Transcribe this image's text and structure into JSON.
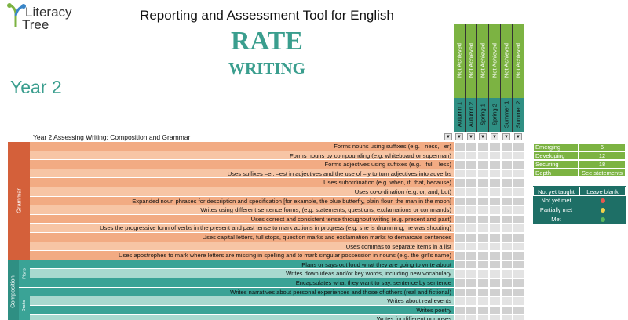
{
  "logo": {
    "line1": "Literacy",
    "line2": "Tree"
  },
  "header": {
    "title": "Reporting and Assessment Tool for English",
    "rate": "RATE",
    "subtitle": "WRITING",
    "year": "Year 2"
  },
  "table": {
    "heading": "Year 2 Assessing Writing: Composition and Grammar",
    "columns": [
      {
        "status": "Not Achieved",
        "period": "Autumn 1"
      },
      {
        "status": "Not Achieved",
        "period": "Autumn 2"
      },
      {
        "status": "Not Achieved",
        "period": "Spring 1"
      },
      {
        "status": "Not Achieved",
        "period": "Spring 2"
      },
      {
        "status": "Not Achieved",
        "period": "Summer 1"
      },
      {
        "status": "Not Achieved",
        "period": "Summer 2"
      }
    ],
    "sections": [
      {
        "name": "Grammar",
        "groups": [
          {
            "rows": [
              "Forms nouns using suffixes (e.g. –ness, –er)",
              "Forms nouns by compounding (e.g. whiteboard or superman)",
              "Forms adjectives using suffixes (e.g. –ful, –less)",
              "Uses suffixes –er, –est in adjectives and the use of –ly to turn adjectives into adverbs",
              "Uses subordination (e.g. when, if, that, because)",
              "Uses co-ordination (e.g. or, and, but)",
              "Expanded noun phrases for description and specification [for example, the blue butterfly, plain flour, the man in the moon]",
              "Writes using different sentence forms, (e.g. statements, questions, exclamations or commands)",
              "Uses correct and consistent  tense throughout writing (e.g. present and past)",
              "Uses the progressive form of verbs in the present and past tense to mark actions in progress (e.g. she is drumming, he was shouting)",
              "Uses capital letters, full stops, question marks and exclamation marks to demarcate sentences",
              "Uses commas to separate items in a list",
              "Uses apostrophes to mark where letters are missing in spelling and to mark singular possession in nouns (e.g. the girl's name)"
            ]
          }
        ]
      },
      {
        "name": "Composition",
        "groups": [
          {
            "name": "Plans",
            "rows": [
              "Plans or says out loud what they are going to write about",
              "Writes down ideas and/or key words, including new vocabulary",
              "Encapsulates what they want to say, sentence by sentence"
            ]
          },
          {
            "name": "Drafts",
            "rows": [
              "Writes narratives about personal experiences and those of others (real and fictional)",
              "Writes about real events",
              "Writes poetry",
              "Writes for different purposes"
            ]
          }
        ]
      }
    ]
  },
  "scale": [
    {
      "label": "Emerging",
      "value": 6
    },
    {
      "label": "Developing",
      "value": 12
    },
    {
      "label": "Securing",
      "value": 18
    },
    {
      "label": "Depth",
      "value": "See statements"
    }
  ],
  "key": {
    "header": [
      "Not yet taught",
      "Leave blank"
    ],
    "items": [
      {
        "label": "Not yet met",
        "color": "#e8594f"
      },
      {
        "label": "Partially met",
        "color": "#f2d14b"
      },
      {
        "label": "Met",
        "color": "#5cb85c"
      }
    ]
  }
}
